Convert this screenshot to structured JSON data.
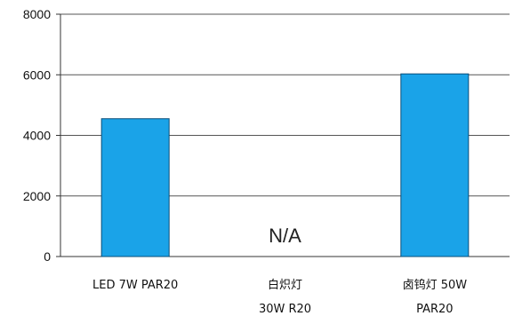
{
  "chart_data": {
    "type": "bar",
    "title": "",
    "xlabel": "",
    "ylabel": "",
    "ylim": [
      0,
      8000
    ],
    "yticks": [
      0,
      2000,
      4000,
      6000,
      8000
    ],
    "grid": true,
    "colors": {
      "bar": "#1aa3e8",
      "bar_edge": "#0b4f7a",
      "grid": "#555555"
    },
    "categories": [
      {
        "lines": [
          "LED  7W  PAR20"
        ],
        "value": 4550
      },
      {
        "lines": [
          "白炽灯",
          "30W  R20"
        ],
        "value": null,
        "annotation": "N/A"
      },
      {
        "lines": [
          "卤钨灯  50W",
          "PAR20"
        ],
        "value": 6030
      }
    ]
  }
}
